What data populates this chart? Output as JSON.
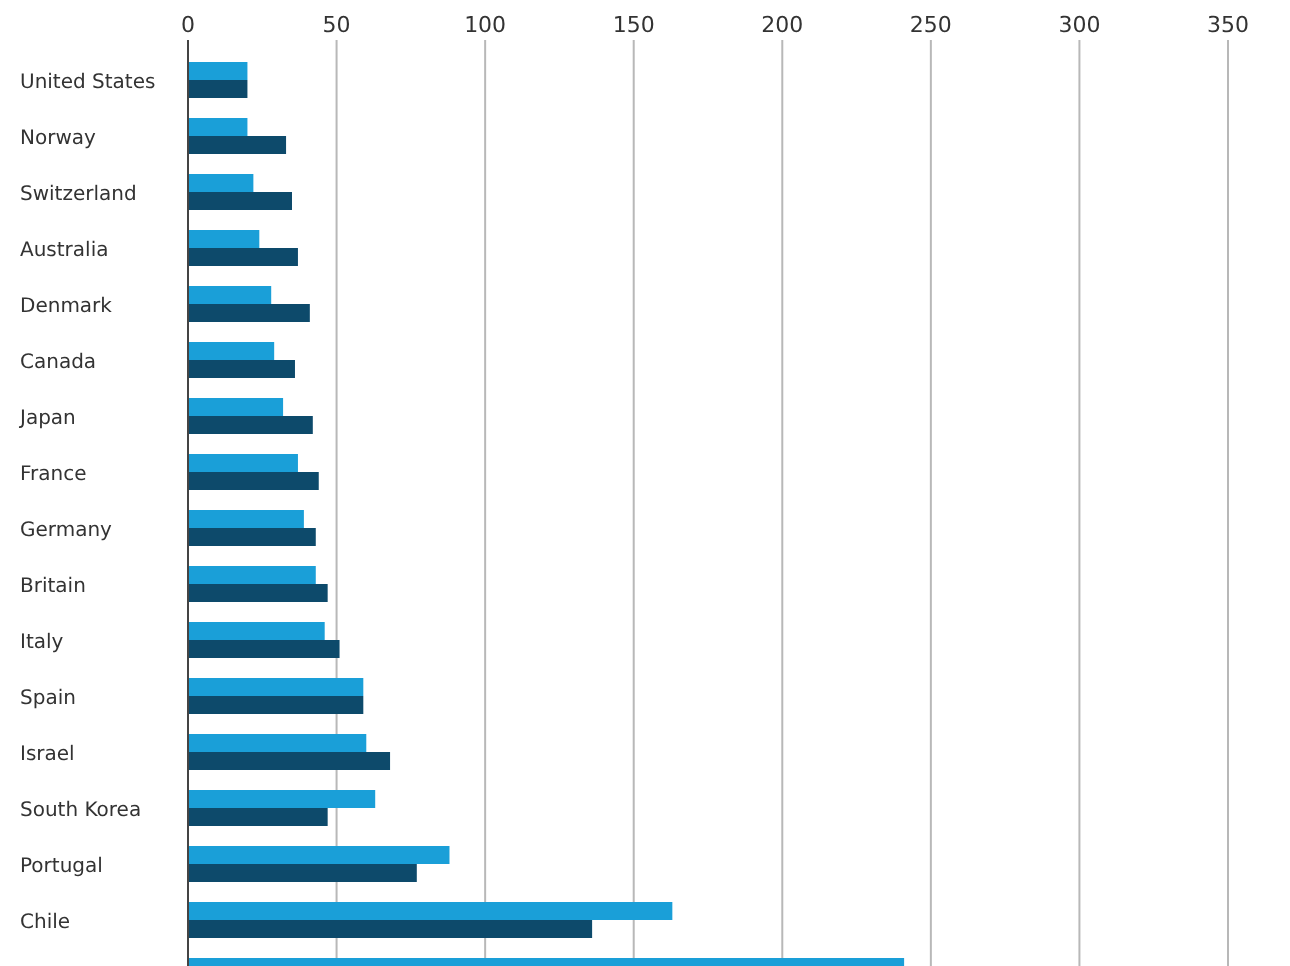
{
  "chart_data": {
    "type": "bar",
    "orientation": "horizontal",
    "categories": [
      "United States",
      "Norway",
      "Switzerland",
      "Australia",
      "Denmark",
      "Canada",
      "Japan",
      "France",
      "Germany",
      "Britain",
      "Italy",
      "Spain",
      "Israel",
      "South Korea",
      "Portugal",
      "Chile",
      null
    ],
    "series": [
      {
        "color": "#1a9fd8",
        "values": [
          20,
          20,
          22,
          24,
          28,
          29,
          32,
          37,
          39,
          43,
          46,
          59,
          60,
          63,
          88,
          163,
          241
        ]
      },
      {
        "color": "#0d4a6b",
        "values": [
          20,
          33,
          35,
          37,
          41,
          36,
          42,
          44,
          43,
          47,
          51,
          59,
          68,
          47,
          77,
          136,
          null
        ]
      }
    ],
    "xlim": [
      0,
      350
    ],
    "xticks": [
      0,
      50,
      100,
      150,
      200,
      250,
      300,
      350
    ],
    "grid": "x"
  }
}
